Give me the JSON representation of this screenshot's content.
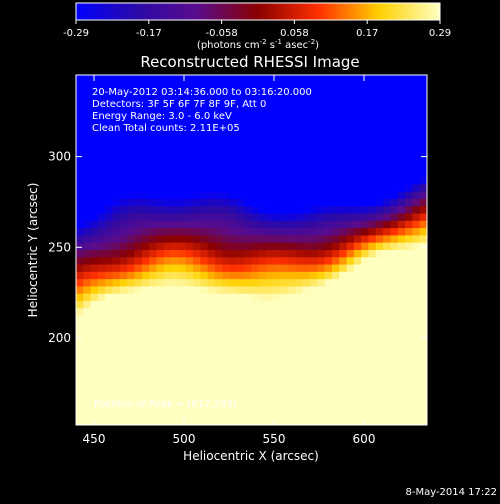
{
  "chart_data": {
    "type": "heatmap",
    "title": "Reconstructed RHESSI Image",
    "xlabel": "Heliocentric X (arcsec)",
    "ylabel": "Heliocentric Y (arcsec)",
    "xlim": [
      440,
      635
    ],
    "ylim": [
      152,
      345
    ],
    "xticks": [
      450,
      500,
      550,
      600
    ],
    "yticks": [
      200,
      250,
      300
    ],
    "colorbar": {
      "ticks": [
        "-0.29",
        "-0.17",
        "-0.058",
        "0.058",
        "0.17",
        "0.29"
      ],
      "range": [
        -0.29,
        0.29
      ],
      "unit_base": "(photons cm",
      "unit_sup1": "-2",
      "unit_mid": " s",
      "unit_sup2": "-1",
      "unit_mid2": " asec",
      "unit_sup3": "-2",
      "unit_end": ")",
      "colors": [
        "#0000ff",
        "#2a0aa8",
        "#5a0c8c",
        "#8a0000",
        "#ff3000",
        "#ffd000",
        "#ffffc0"
      ]
    },
    "annotations": [
      "20-May-2012 03:14:36.000 to 03:16:20.000",
      "Detectors: 3F 5F 6F 7F 8F 9F, Att 0",
      "Energy Range: 3.0 - 6.0 keV",
      "Clean     Total counts: 2.11E+05"
    ],
    "peak_label": "Position of Peak = [617,203]",
    "peak": [
      617,
      203
    ],
    "grid": false
  },
  "footer_date": "8-May-2014 17:22"
}
